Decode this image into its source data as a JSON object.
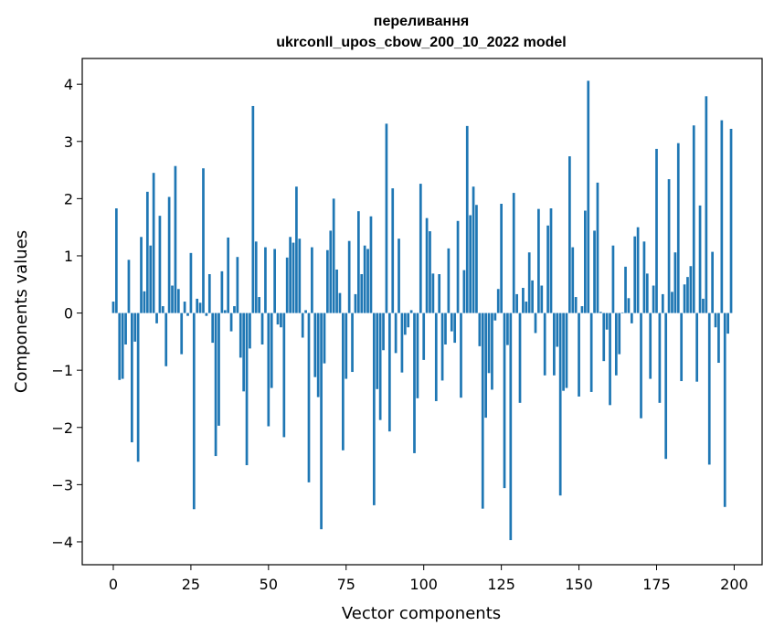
{
  "chart_data": {
    "type": "bar",
    "title": "переливання",
    "subtitle": "ukrconll_upos_cbow_200_10_2022 model",
    "xlabel": "Vector components",
    "ylabel": "Components values",
    "xlim": [
      -10,
      209
    ],
    "ylim": [
      -4.4,
      4.45
    ],
    "xticks": [
      0,
      25,
      50,
      75,
      100,
      125,
      150,
      175,
      200
    ],
    "yticks": [
      -4,
      -3,
      -2,
      -1,
      0,
      1,
      2,
      3,
      4
    ],
    "xtick_labels": [
      "0",
      "25",
      "50",
      "75",
      "100",
      "125",
      "150",
      "175",
      "200"
    ],
    "ytick_labels": [
      "−4",
      "−3",
      "−2",
      "−1",
      "0",
      "1",
      "2",
      "3",
      "4"
    ],
    "bar_color": "#1f77b4",
    "values": [
      0.2,
      1.83,
      -1.17,
      -1.15,
      -0.55,
      0.93,
      -2.26,
      -0.5,
      -2.6,
      1.33,
      0.38,
      2.12,
      1.18,
      2.45,
      -0.18,
      1.7,
      0.12,
      -0.93,
      2.03,
      0.48,
      2.57,
      0.42,
      -0.72,
      0.2,
      -0.05,
      1.05,
      -3.43,
      0.25,
      0.18,
      2.53,
      -0.05,
      0.68,
      -0.52,
      -2.5,
      -1.97,
      0.73,
      0.05,
      1.32,
      -0.32,
      0.12,
      0.98,
      -0.78,
      -1.37,
      -2.66,
      -0.62,
      3.62,
      1.25,
      0.28,
      -0.55,
      1.15,
      -1.98,
      -1.31,
      1.12,
      -0.2,
      -0.25,
      -2.17,
      0.97,
      1.33,
      1.23,
      2.21,
      1.3,
      -0.43,
      0.05,
      -2.96,
      1.15,
      -1.12,
      -1.47,
      -3.78,
      -0.88,
      1.1,
      1.44,
      2.0,
      0.76,
      0.35,
      -2.4,
      -1.15,
      1.26,
      -1.03,
      0.33,
      1.78,
      0.68,
      1.18,
      1.12,
      1.69,
      -3.36,
      -1.33,
      -1.87,
      -0.65,
      3.31,
      -2.07,
      2.18,
      -0.7,
      1.3,
      -1.04,
      -0.38,
      -0.25,
      0.05,
      -2.45,
      -1.49,
      2.26,
      -0.82,
      1.66,
      1.43,
      0.69,
      -1.54,
      0.68,
      -1.18,
      -0.55,
      1.13,
      -0.32,
      -0.52,
      1.61,
      -1.48,
      0.75,
      3.27,
      1.71,
      2.21,
      1.89,
      -0.58,
      -3.42,
      -1.83,
      -1.05,
      -1.34,
      -0.13,
      0.42,
      1.91,
      -3.06,
      -0.56,
      -3.97,
      2.1,
      0.33,
      -1.57,
      0.44,
      0.2,
      1.06,
      0.57,
      -0.35,
      1.82,
      0.48,
      -1.09,
      1.53,
      1.83,
      -1.09,
      -0.59,
      -3.19,
      -1.36,
      -1.31,
      2.74,
      1.15,
      0.28,
      -1.46,
      0.12,
      1.79,
      4.06,
      -1.38,
      1.44,
      2.28,
      0.02,
      -0.84,
      -0.29,
      -1.61,
      1.18,
      -1.09,
      -0.72,
      0.01,
      0.81,
      0.26,
      -0.18,
      1.34,
      1.5,
      -1.84,
      1.25,
      0.69,
      -1.15,
      0.48,
      2.87,
      -1.57,
      0.33,
      -2.55,
      2.34,
      0.37,
      1.06,
      2.97,
      -1.19,
      0.5,
      0.63,
      0.82,
      3.28,
      -1.2,
      1.88,
      0.25,
      3.79,
      -2.65,
      1.07,
      -0.25,
      -0.87,
      3.37,
      -3.39,
      -0.36,
      3.22
    ]
  }
}
